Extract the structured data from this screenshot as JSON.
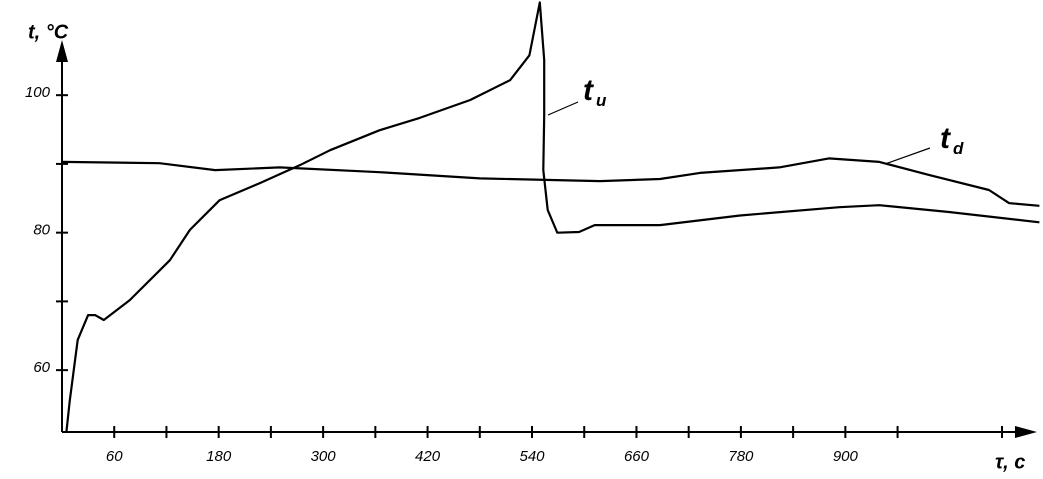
{
  "chart_data": {
    "type": "line",
    "y_label": "t, °C",
    "x_label": "τ, c",
    "xlim": [
      0,
      1111
    ],
    "ylim": [
      51,
      107.3
    ],
    "xticks": [
      60,
      180,
      300,
      420,
      540,
      660,
      780,
      900
    ],
    "xminor_ticks": [
      120,
      240,
      360,
      480,
      600,
      720,
      840,
      960,
      1080
    ],
    "yticks": [
      60,
      80,
      100
    ],
    "yminor_ticks": [
      70,
      90
    ],
    "series": [
      {
        "name": "t",
        "sub": "u",
        "color": "#000000",
        "x": [
          5,
          9,
          18,
          30,
          38,
          48,
          78,
          124,
          147,
          181,
          227,
          273,
          308,
          365,
          411,
          469,
          515,
          537,
          549,
          554,
          554,
          553,
          558,
          569,
          594,
          612,
          687,
          779,
          893,
          939,
          1019,
          1123
        ],
        "values": [
          51,
          55.6,
          64.4,
          68,
          68,
          67.3,
          70.2,
          76,
          80.4,
          84.7,
          87.2,
          89.8,
          92,
          94.9,
          96.7,
          99.3,
          102.2,
          105.8,
          113.5,
          105.1,
          97.1,
          89.1,
          83.3,
          80,
          80.1,
          81.1,
          81.1,
          82.5,
          83.7,
          84,
          83,
          81.5
        ]
      },
      {
        "name": "t",
        "sub": "d",
        "color": "#000000",
        "x": [
          0,
          112,
          176,
          250,
          365,
          480,
          618,
          687,
          733,
          824,
          881,
          939,
          996,
          1065,
          1088,
          1123
        ],
        "values": [
          90.3,
          90.1,
          89.1,
          89.5,
          88.8,
          87.9,
          87.5,
          87.8,
          88.7,
          89.5,
          90.8,
          90.3,
          88.4,
          86.2,
          84.3,
          83.9
        ]
      }
    ]
  }
}
